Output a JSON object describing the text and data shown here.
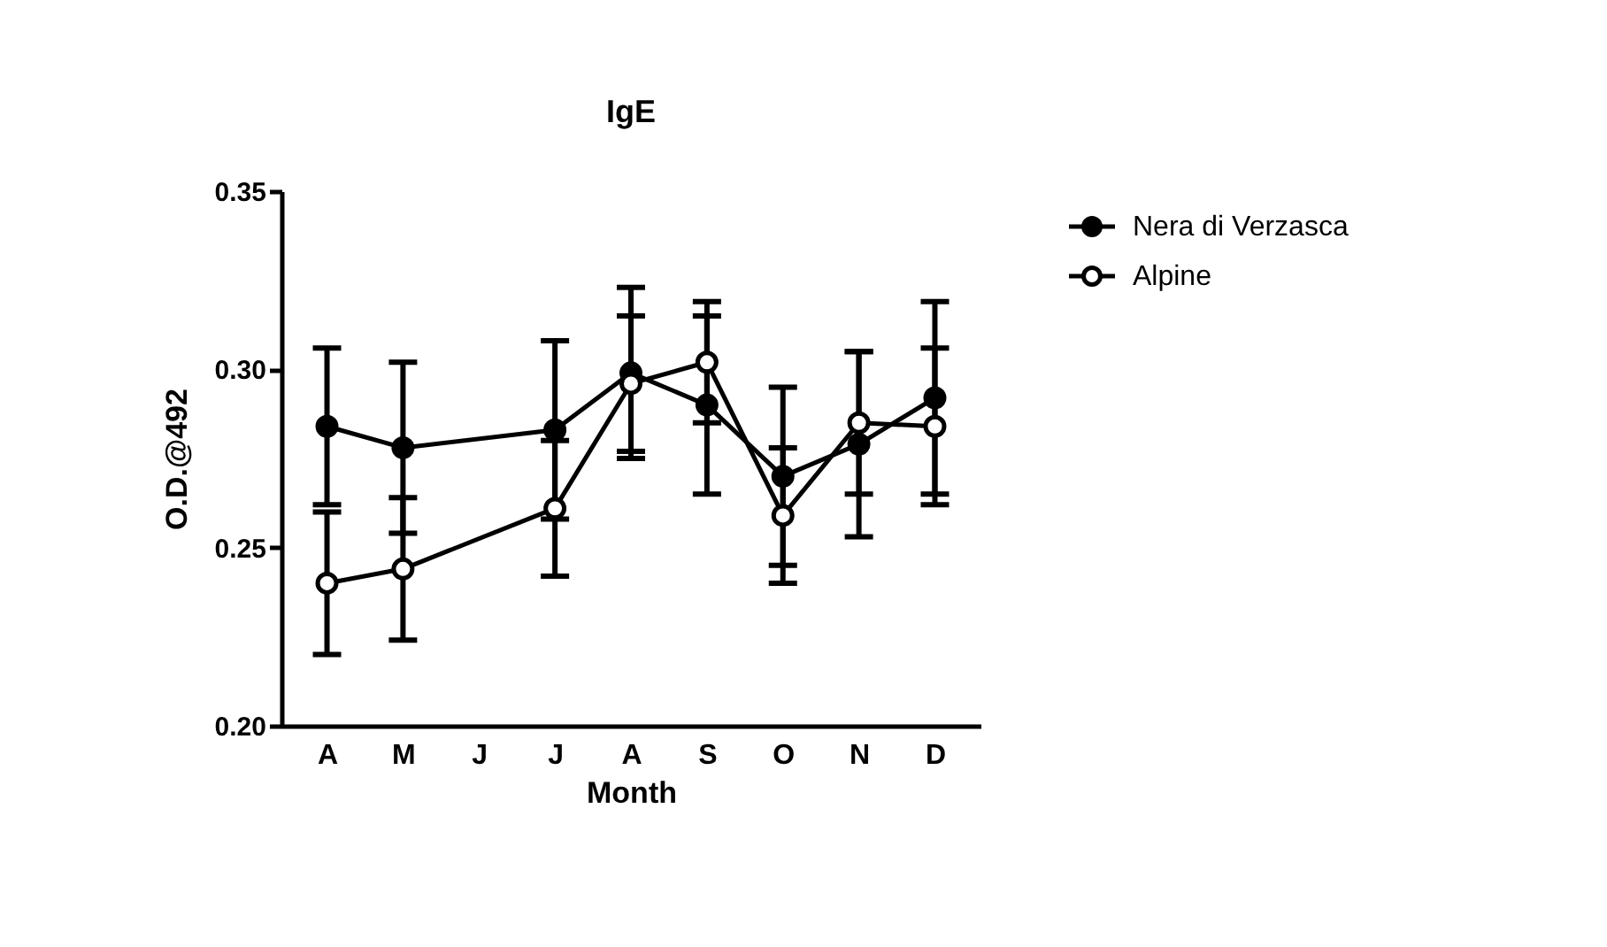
{
  "chart_data": {
    "type": "line",
    "title": "IgE",
    "xlabel": "Month",
    "ylabel": "O.D.@492",
    "categories": [
      "A",
      "M",
      "J",
      "J",
      "A",
      "S",
      "O",
      "N",
      "D"
    ],
    "series": [
      {
        "name": "Nera di Verzasca",
        "color": "#000000",
        "values": [
          0.284,
          0.278,
          null,
          0.283,
          0.299,
          0.29,
          0.27,
          0.279,
          0.292
        ],
        "errors": [
          0.022,
          0.024,
          null,
          0.025,
          0.024,
          0.025,
          0.025,
          0.026,
          0.027
        ]
      },
      {
        "name": "Alpine",
        "color": "#000000",
        "values": [
          0.24,
          0.244,
          null,
          0.261,
          0.296,
          0.302,
          0.259,
          0.285,
          0.284
        ],
        "errors": [
          0.02,
          0.02,
          null,
          0.019,
          0.019,
          0.017,
          0.019,
          0.02,
          0.022
        ]
      }
    ],
    "ylim": [
      0.2,
      0.35
    ],
    "yticks": [
      {
        "value": 0.2,
        "label": "0.20"
      },
      {
        "value": 0.25,
        "label": "0.25"
      },
      {
        "value": 0.3,
        "label": "0.30"
      },
      {
        "value": 0.35,
        "label": "0.35"
      }
    ],
    "marker": "circle",
    "line_style": "solid",
    "legend": "right",
    "grid": false
  }
}
